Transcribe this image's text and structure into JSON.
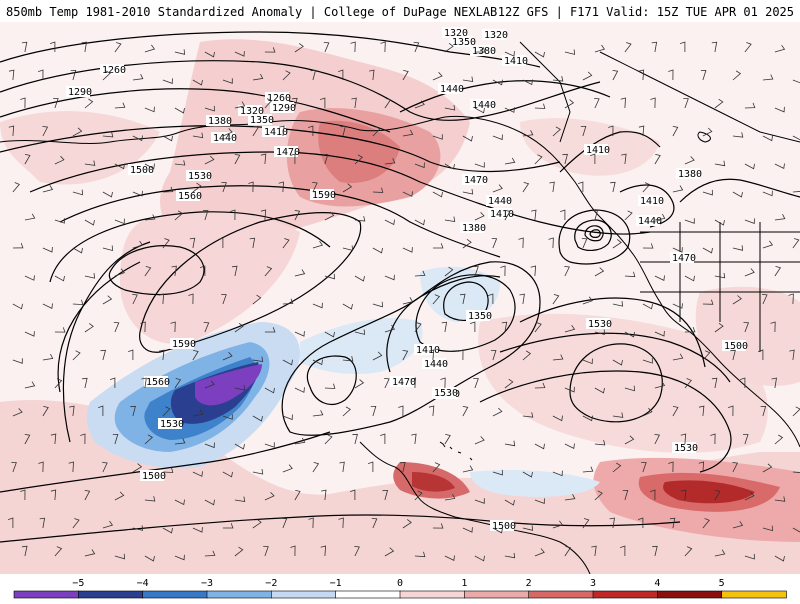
{
  "header": {
    "title": "850mb Temp 1981-2010 Standardized Anomaly | College of DuPage NEXLAB",
    "run_info": "12Z GFS | F171 Valid: 15Z TUE APR 01 2025"
  },
  "contour_labels": [
    "1320",
    "1350",
    "1380",
    "1410",
    "1440",
    "1470",
    "1500",
    "1530",
    "1560",
    "1590",
    "1260",
    "1290",
    "1320",
    "1380",
    "1440",
    "1470",
    "1500",
    "1530",
    "1560",
    "1590",
    "1260",
    "1290",
    "1350",
    "1410",
    "1440",
    "1410",
    "1470",
    "1440",
    "1410",
    "1380",
    "1350",
    "1410",
    "1440",
    "1470",
    "1500",
    "1530",
    "1500",
    "1530",
    "1500",
    "1500",
    "1590",
    "1560",
    "1380",
    "1410",
    "1440",
    "1470",
    "1530",
    "1530"
  ],
  "colorbar": {
    "labels": [
      "−5",
      "−4",
      "−3",
      "−2",
      "−1",
      "0",
      "1",
      "2",
      "3",
      "4",
      "5"
    ],
    "colors": [
      "#7b3fbf",
      "#2a3f8f",
      "#3878c8",
      "#7fb2e5",
      "#c5daf2",
      "#ffffff",
      "#f6d5d5",
      "#eba9a9",
      "#d86767",
      "#c02828",
      "#8a0f0f",
      "#f4c20d"
    ]
  }
}
